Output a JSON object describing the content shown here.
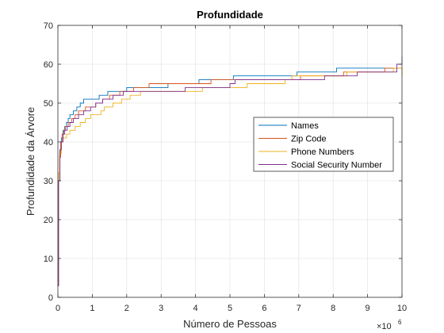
{
  "chart_data": {
    "type": "line",
    "title": "Profundidade",
    "xlabel": "Número de Pessoas",
    "ylabel": "Profundidade da Árvore",
    "x_multiplier_base": "×10",
    "x_multiplier_exp": "6",
    "xlim": [
      0,
      10
    ],
    "ylim": [
      0,
      70
    ],
    "xticks": [
      0,
      1,
      2,
      3,
      4,
      5,
      6,
      7,
      8,
      9,
      10
    ],
    "yticks": [
      0,
      10,
      20,
      30,
      40,
      50,
      60,
      70
    ],
    "grid": true,
    "legend_position": "center-right",
    "series": [
      {
        "name": "Names",
        "color": "#0072BD",
        "points": [
          [
            0,
            3
          ],
          [
            0.02,
            30
          ],
          [
            0.06,
            38
          ],
          [
            0.1,
            41
          ],
          [
            0.15,
            43
          ],
          [
            0.2,
            44
          ],
          [
            0.25,
            45
          ],
          [
            0.3,
            46
          ],
          [
            0.35,
            47
          ],
          [
            0.45,
            48
          ],
          [
            0.55,
            49
          ],
          [
            0.65,
            50
          ],
          [
            0.75,
            51
          ],
          [
            1.0,
            51
          ],
          [
            1.2,
            52
          ],
          [
            1.45,
            53
          ],
          [
            1.75,
            53
          ],
          [
            2.0,
            54
          ],
          [
            2.8,
            54
          ],
          [
            3.2,
            55
          ],
          [
            3.9,
            55
          ],
          [
            4.1,
            56
          ],
          [
            4.8,
            56
          ],
          [
            5.1,
            57
          ],
          [
            6.6,
            57
          ],
          [
            6.95,
            58
          ],
          [
            7.9,
            58
          ],
          [
            8.1,
            59
          ],
          [
            9.9,
            59
          ],
          [
            10,
            59
          ]
        ]
      },
      {
        "name": "Zip Code",
        "color": "#D95319",
        "points": [
          [
            0,
            3
          ],
          [
            0.02,
            32
          ],
          [
            0.05,
            36
          ],
          [
            0.08,
            40
          ],
          [
            0.12,
            42
          ],
          [
            0.17,
            43
          ],
          [
            0.22,
            44
          ],
          [
            0.3,
            45
          ],
          [
            0.4,
            46
          ],
          [
            0.5,
            47
          ],
          [
            0.6,
            48
          ],
          [
            0.8,
            49
          ],
          [
            0.95,
            49
          ],
          [
            1.1,
            50
          ],
          [
            1.3,
            51
          ],
          [
            1.5,
            52
          ],
          [
            1.8,
            53
          ],
          [
            2.2,
            54
          ],
          [
            2.65,
            55
          ],
          [
            3.5,
            55
          ],
          [
            4.0,
            55
          ],
          [
            4.45,
            56
          ],
          [
            5.0,
            56
          ],
          [
            6.55,
            56
          ],
          [
            7.05,
            57
          ],
          [
            7.9,
            57
          ],
          [
            8.3,
            58
          ],
          [
            9.0,
            58
          ],
          [
            9.5,
            59
          ],
          [
            9.9,
            59
          ],
          [
            10,
            57
          ]
        ]
      },
      {
        "name": "Phone Numbers",
        "color": "#EDB120",
        "points": [
          [
            0,
            3
          ],
          [
            0.02,
            32
          ],
          [
            0.05,
            37
          ],
          [
            0.1,
            40
          ],
          [
            0.15,
            41
          ],
          [
            0.25,
            42
          ],
          [
            0.35,
            43
          ],
          [
            0.5,
            44
          ],
          [
            0.65,
            45
          ],
          [
            0.8,
            46
          ],
          [
            0.95,
            47
          ],
          [
            1.1,
            47
          ],
          [
            1.25,
            48
          ],
          [
            1.35,
            49
          ],
          [
            1.6,
            50
          ],
          [
            1.85,
            51
          ],
          [
            2.1,
            52
          ],
          [
            2.4,
            53
          ],
          [
            3.3,
            53
          ],
          [
            4.0,
            53
          ],
          [
            4.2,
            54
          ],
          [
            5.1,
            54
          ],
          [
            5.5,
            55
          ],
          [
            6.3,
            55
          ],
          [
            6.6,
            56
          ],
          [
            6.8,
            57
          ],
          [
            8.0,
            57
          ],
          [
            8.4,
            58
          ],
          [
            9.5,
            58
          ],
          [
            9.75,
            59
          ],
          [
            10,
            57
          ]
        ]
      },
      {
        "name": "Social Security Number",
        "color": "#7E2F8E",
        "points": [
          [
            0,
            3
          ],
          [
            0.02,
            30
          ],
          [
            0.06,
            38
          ],
          [
            0.1,
            40
          ],
          [
            0.15,
            42
          ],
          [
            0.2,
            43
          ],
          [
            0.27,
            44
          ],
          [
            0.35,
            45
          ],
          [
            0.45,
            46
          ],
          [
            0.6,
            47
          ],
          [
            0.75,
            48
          ],
          [
            0.95,
            49
          ],
          [
            1.1,
            50
          ],
          [
            1.3,
            51
          ],
          [
            1.6,
            52
          ],
          [
            1.9,
            53
          ],
          [
            3.3,
            53
          ],
          [
            3.7,
            54
          ],
          [
            4.6,
            54
          ],
          [
            5.0,
            55
          ],
          [
            5.15,
            56
          ],
          [
            5.5,
            56
          ],
          [
            7.6,
            56
          ],
          [
            7.75,
            57
          ],
          [
            8.5,
            57
          ],
          [
            8.7,
            58
          ],
          [
            9.4,
            58
          ],
          [
            9.75,
            58
          ],
          [
            9.85,
            60
          ],
          [
            10,
            62
          ]
        ]
      }
    ]
  }
}
